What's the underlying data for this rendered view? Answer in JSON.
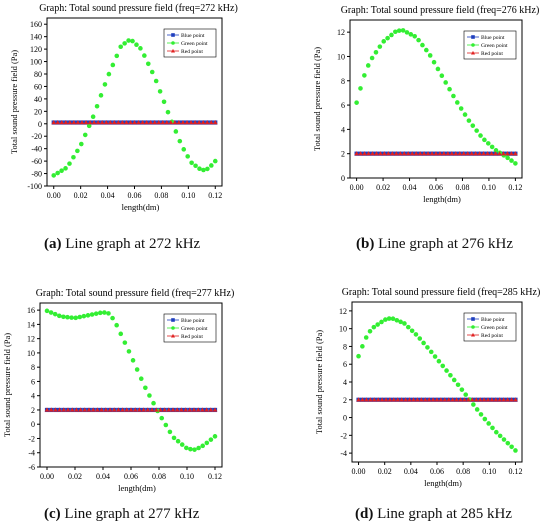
{
  "chart_data": [
    {
      "type": "scatter",
      "title": "Graph: Total sound pressure field (freq=272 kHz)",
      "xlabel": "length(dm)",
      "ylabel": "Total sound pressure field (Pa)",
      "xlim": [
        -0.005,
        0.125
      ],
      "ylim": [
        -100,
        170
      ],
      "xticks": [
        "0.00",
        "0.02",
        "0.04",
        "0.06",
        "0.08",
        "0.10",
        "0.12"
      ],
      "yticks": [
        "-100",
        "-80",
        "-60",
        "-40",
        "-20",
        "0",
        "20",
        "40",
        "60",
        "80",
        "100",
        "120",
        "140",
        "160"
      ],
      "legend_position": "top-right",
      "caption_letter": "(a)",
      "caption_text": " Line graph at 272 kHz",
      "series": [
        {
          "name": "Blue point",
          "color": "#1f3fbf",
          "marker": "square",
          "x": [
            0.0,
            0.12
          ],
          "y": [
            2,
            2
          ]
        },
        {
          "name": "Green point",
          "color": "#33ee33",
          "marker": "circle",
          "x": [
            0.0,
            0.01,
            0.02,
            0.03,
            0.04,
            0.05,
            0.057,
            0.065,
            0.075,
            0.085,
            0.095,
            0.102,
            0.11,
            0.115,
            0.12
          ],
          "y": [
            -83,
            -70,
            -35,
            15,
            75,
            125,
            136,
            120,
            75,
            18,
            -35,
            -62,
            -75,
            -72,
            -60
          ]
        },
        {
          "name": "Red point",
          "color": "#e02020",
          "marker": "triangle",
          "x": [
            0.0,
            0.12
          ],
          "y": [
            2,
            2
          ]
        }
      ]
    },
    {
      "type": "scatter",
      "title": "Graph: Total sound pressure field (freq=276 kHz)",
      "xlabel": "length(dm)",
      "ylabel": "Total sound pressure field (Pa)",
      "xlim": [
        -0.005,
        0.125
      ],
      "ylim": [
        0,
        13
      ],
      "xticks": [
        "0.00",
        "0.02",
        "0.04",
        "0.06",
        "0.08",
        "0.10",
        "0.12"
      ],
      "yticks": [
        "0",
        "2",
        "4",
        "6",
        "8",
        "10",
        "12"
      ],
      "legend_position": "top-right",
      "caption_letter": "(b)",
      "caption_text": " Line graph at 276 kHz",
      "series": [
        {
          "name": "Blue point",
          "color": "#1f3fbf",
          "marker": "square",
          "x": [
            0.0,
            0.12
          ],
          "y": [
            2,
            2
          ]
        },
        {
          "name": "Green point",
          "color": "#33ee33",
          "marker": "circle",
          "x": [
            0.0,
            0.005,
            0.01,
            0.02,
            0.03,
            0.035,
            0.045,
            0.055,
            0.065,
            0.075,
            0.085,
            0.095,
            0.105,
            0.115,
            0.12
          ],
          "y": [
            6.2,
            8.2,
            9.6,
            11.2,
            12.1,
            12.15,
            11.6,
            10.2,
            8.3,
            6.4,
            4.7,
            3.3,
            2.3,
            1.6,
            1.2
          ]
        },
        {
          "name": "Red point",
          "color": "#e02020",
          "marker": "triangle",
          "x": [
            0.0,
            0.12
          ],
          "y": [
            2,
            2
          ]
        }
      ]
    },
    {
      "type": "scatter",
      "title": "Graph: Total sound pressure field (freq=277 kHz)",
      "xlabel": "length(dm)",
      "ylabel": "Total sound pressure field (Pa)",
      "xlim": [
        -0.005,
        0.125
      ],
      "ylim": [
        -6,
        17
      ],
      "xticks": [
        "0.00",
        "0.02",
        "0.04",
        "0.06",
        "0.08",
        "0.10",
        "0.12"
      ],
      "yticks": [
        "-6",
        "-4",
        "-2",
        "0",
        "2",
        "4",
        "6",
        "8",
        "10",
        "12",
        "14",
        "16"
      ],
      "legend_position": "top-right",
      "caption_letter": "(c)",
      "caption_text": " Line graph at 277 kHz",
      "series": [
        {
          "name": "Blue point",
          "color": "#1f3fbf",
          "marker": "square",
          "x": [
            0.0,
            0.12
          ],
          "y": [
            2,
            2
          ]
        },
        {
          "name": "Green point",
          "color": "#33ee33",
          "marker": "circle",
          "x": [
            0.0,
            0.01,
            0.02,
            0.03,
            0.04,
            0.045,
            0.05,
            0.06,
            0.07,
            0.08,
            0.09,
            0.1,
            0.105,
            0.11,
            0.115,
            0.12
          ],
          "y": [
            15.9,
            15.1,
            14.9,
            15.3,
            15.7,
            15.5,
            13.8,
            9.6,
            5.2,
            1.5,
            -1.8,
            -3.4,
            -3.6,
            -3.2,
            -2.5,
            -1.7
          ]
        },
        {
          "name": "Red point",
          "color": "#e02020",
          "marker": "triangle",
          "x": [
            0.0,
            0.12
          ],
          "y": [
            2,
            2
          ]
        }
      ]
    },
    {
      "type": "scatter",
      "title": "Graph: Total sound pressure field (freq=285 kHz)",
      "xlabel": "length(dm)",
      "ylabel": "Total sound pressure field (Pa)",
      "xlim": [
        -0.005,
        0.125
      ],
      "ylim": [
        -5,
        13
      ],
      "xticks": [
        "0.00",
        "0.02",
        "0.04",
        "0.06",
        "0.08",
        "0.10",
        "0.12"
      ],
      "yticks": [
        "-4",
        "-2",
        "0",
        "2",
        "4",
        "6",
        "8",
        "10",
        "12"
      ],
      "legend_position": "top-right",
      "caption_letter": "(d)",
      "caption_text": " Line graph at 285 kHz",
      "series": [
        {
          "name": "Blue point",
          "color": "#1f3fbf",
          "marker": "square",
          "x": [
            0.0,
            0.12
          ],
          "y": [
            2,
            2
          ]
        },
        {
          "name": "Green point",
          "color": "#33ee33",
          "marker": "circle",
          "x": [
            0.0,
            0.005,
            0.01,
            0.02,
            0.025,
            0.035,
            0.045,
            0.055,
            0.065,
            0.075,
            0.085,
            0.095,
            0.105,
            0.115,
            0.12
          ],
          "y": [
            6.9,
            8.8,
            10.0,
            11.0,
            11.2,
            10.6,
            9.2,
            7.5,
            5.7,
            3.9,
            2.0,
            0.1,
            -1.6,
            -3.0,
            -3.7
          ]
        },
        {
          "name": "Red point",
          "color": "#e02020",
          "marker": "triangle",
          "x": [
            0.0,
            0.12
          ],
          "y": [
            2,
            2
          ]
        }
      ]
    }
  ]
}
